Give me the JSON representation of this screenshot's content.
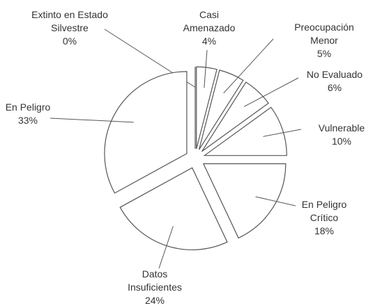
{
  "chart_data": {
    "type": "pie",
    "categories": [
      "Extinto en Estado Silvestre",
      "Casi Amenazado",
      "Preocupación Menor",
      "No Evaluado",
      "Vulnerable",
      "En Peligro Crítico",
      "Datos Insuficientes",
      "En Peligro"
    ],
    "values": [
      0,
      4,
      5,
      6,
      10,
      18,
      24,
      33
    ],
    "value_labels": [
      "0%",
      "4%",
      "5%",
      "6%",
      "10%",
      "18%",
      "24%",
      "33%"
    ],
    "color": "#ffffff"
  }
}
